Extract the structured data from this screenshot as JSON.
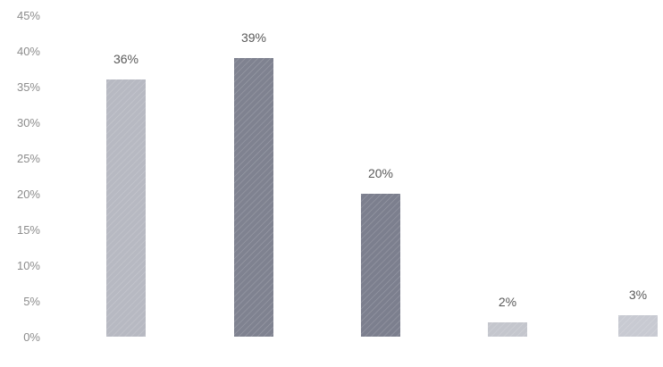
{
  "chart_data": {
    "type": "bar",
    "categories": [
      "",
      "",
      "",
      "",
      ""
    ],
    "values": [
      36,
      39,
      20,
      2,
      3
    ],
    "data_labels": [
      "36%",
      "39%",
      "20%",
      "2%",
      "3%"
    ],
    "y_tick_labels": [
      "0%",
      "5%",
      "10%",
      "15%",
      "20%",
      "25%",
      "30%",
      "35%",
      "40%",
      "45%"
    ],
    "ylim": [
      0,
      45
    ],
    "y_unit": "%",
    "grid": false,
    "title": "",
    "xlabel": "",
    "ylabel": "",
    "colors": [
      "#b7b9c2",
      "#7f8290",
      "#7c7f8e",
      "#c4c6cd",
      "#c8cad2"
    ]
  }
}
